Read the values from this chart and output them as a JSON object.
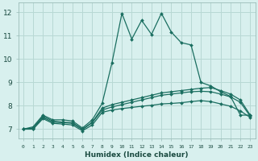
{
  "xlabel": "Humidex (Indice chaleur)",
  "bg_color": "#d8f0ee",
  "grid_color": "#b8d8d4",
  "line_color": "#1a6e60",
  "xlim": [
    -0.5,
    23.5
  ],
  "ylim": [
    6.6,
    12.4
  ],
  "yticks": [
    7,
    8,
    9,
    10,
    11,
    12
  ],
  "xtick_labels": [
    "0",
    "1",
    "2",
    "3",
    "4",
    "5",
    "6",
    "7",
    "8",
    "9",
    "10",
    "11",
    "12",
    "13",
    "14",
    "15",
    "16",
    "17",
    "18",
    "19",
    "20",
    "21",
    "22",
    "23"
  ],
  "curve1_x": [
    0,
    1,
    2,
    3,
    4,
    5,
    6,
    7,
    8,
    9,
    10,
    11,
    12,
    13,
    14,
    15,
    16,
    17,
    18,
    19,
    20,
    21,
    22,
    23
  ],
  "curve1_y": [
    7.0,
    7.1,
    7.6,
    7.4,
    7.4,
    7.35,
    7.05,
    7.4,
    8.1,
    9.85,
    11.95,
    10.85,
    11.65,
    11.05,
    11.95,
    11.15,
    10.7,
    10.6,
    9.0,
    8.85,
    8.6,
    8.4,
    7.6,
    7.6
  ],
  "curve2_x": [
    0,
    1,
    2,
    3,
    4,
    5,
    6,
    7,
    8,
    9,
    10,
    11,
    12,
    13,
    14,
    15,
    16,
    17,
    18,
    19,
    20,
    21,
    22,
    23
  ],
  "curve2_y": [
    7.0,
    7.05,
    7.55,
    7.35,
    7.3,
    7.28,
    7.0,
    7.3,
    7.9,
    8.05,
    8.15,
    8.25,
    8.35,
    8.45,
    8.55,
    8.6,
    8.65,
    8.7,
    8.75,
    8.78,
    8.65,
    8.5,
    8.25,
    7.6
  ],
  "curve3_x": [
    0,
    1,
    2,
    3,
    4,
    5,
    6,
    7,
    8,
    9,
    10,
    11,
    12,
    13,
    14,
    15,
    16,
    17,
    18,
    19,
    20,
    21,
    22,
    23
  ],
  "curve3_y": [
    7.0,
    7.02,
    7.5,
    7.3,
    7.28,
    7.25,
    6.98,
    7.28,
    7.82,
    7.95,
    8.05,
    8.15,
    8.25,
    8.35,
    8.45,
    8.5,
    8.55,
    8.6,
    8.62,
    8.6,
    8.5,
    8.38,
    8.15,
    7.55
  ],
  "curve4_x": [
    0,
    1,
    2,
    3,
    4,
    5,
    6,
    7,
    8,
    9,
    10,
    11,
    12,
    13,
    14,
    15,
    16,
    17,
    18,
    19,
    20,
    21,
    22,
    23
  ],
  "curve4_y": [
    7.0,
    7.0,
    7.45,
    7.25,
    7.22,
    7.18,
    6.93,
    7.18,
    7.72,
    7.82,
    7.88,
    7.93,
    7.98,
    8.02,
    8.08,
    8.1,
    8.13,
    8.18,
    8.22,
    8.18,
    8.08,
    7.98,
    7.78,
    7.5
  ]
}
